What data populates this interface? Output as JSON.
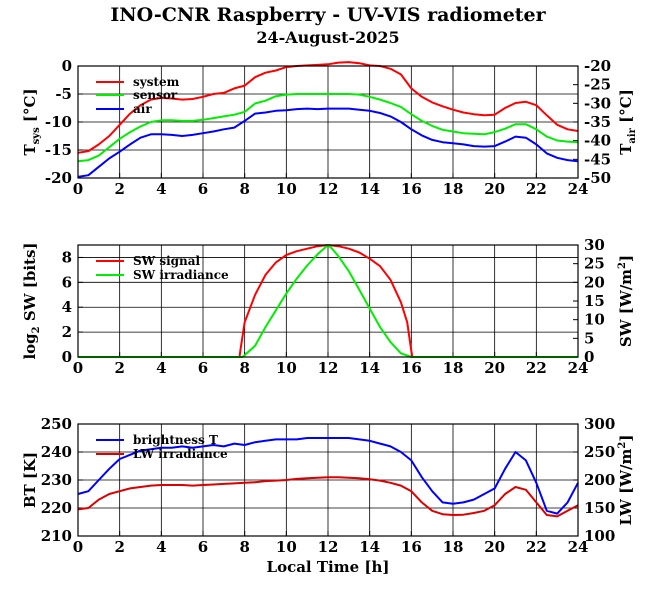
{
  "title": "INO-CNR Raspberry - UV-VIS radiometer",
  "subtitle": "24-August-2025",
  "xlabel": "Local Time [h]",
  "chart_data": [
    {
      "type": "line",
      "x_range": [
        0,
        24
      ],
      "x_ticks": [
        "0",
        "2",
        "4",
        "6",
        "8",
        "10",
        "12",
        "14",
        "16",
        "18",
        "20",
        "22",
        "24"
      ],
      "ylabel_left": "T",
      "ylabel_left_sub": "sys",
      "ylabel_left_unit": " [°C]",
      "ylabel_right": "T",
      "ylabel_right_sub": "air",
      "ylabel_right_unit": " [°C]",
      "ylim_left": [
        -20,
        0
      ],
      "ylim_right": [
        -50,
        -20
      ],
      "y_ticks_left": [
        "0",
        "-5",
        "-10",
        "-15",
        "-20"
      ],
      "y_ticks_right": [
        "-20",
        "-25",
        "-30",
        "-35",
        "-40",
        "-45",
        "-50"
      ],
      "legend": [
        "system",
        "sensor",
        "air"
      ],
      "series": [
        {
          "name": "system",
          "color": "#ff0000",
          "axis": "left",
          "x": [
            0,
            0.5,
            1,
            1.5,
            2,
            2.5,
            3,
            3.5,
            4,
            4.5,
            5,
            5.5,
            6,
            6.5,
            7,
            7.5,
            8,
            8.5,
            9,
            9.5,
            10,
            10.5,
            11,
            11.5,
            12,
            12.5,
            13,
            13.5,
            14,
            14.5,
            15,
            15.5,
            16,
            16.5,
            17,
            17.5,
            18,
            18.5,
            19,
            19.5,
            20,
            20.5,
            21,
            21.5,
            22,
            22.5,
            23,
            23.5,
            24
          ],
          "values": [
            -15.5,
            -15.2,
            -14,
            -12.5,
            -10.5,
            -8.5,
            -7,
            -6,
            -5.7,
            -5.8,
            -6,
            -5.9,
            -5.5,
            -5,
            -4.8,
            -4,
            -3.5,
            -2,
            -1.2,
            -0.8,
            -0.2,
            0,
            0.1,
            0.2,
            0.3,
            0.6,
            0.7,
            0.5,
            0.1,
            0,
            -0.5,
            -1.5,
            -4,
            -5.5,
            -6.5,
            -7.2,
            -7.8,
            -8.3,
            -8.6,
            -8.8,
            -8.7,
            -7.5,
            -6.6,
            -6.4,
            -7,
            -8.8,
            -10.5,
            -11.3,
            -11.6
          ]
        },
        {
          "name": "sensor",
          "color": "#00ee00",
          "axis": "left",
          "x": [
            0,
            0.5,
            1,
            1.5,
            2,
            2.5,
            3,
            3.5,
            4,
            4.5,
            5,
            5.5,
            6,
            6.5,
            7,
            7.5,
            8,
            8.5,
            9,
            9.5,
            10,
            10.5,
            11,
            11.5,
            12,
            12.5,
            13,
            13.5,
            14,
            14.5,
            15,
            15.5,
            16,
            16.5,
            17,
            17.5,
            18,
            18.5,
            19,
            19.5,
            20,
            20.5,
            21,
            21.5,
            22,
            22.5,
            23,
            23.5,
            24
          ],
          "values": [
            -17,
            -16.8,
            -16,
            -14.5,
            -13,
            -11.8,
            -10.8,
            -10,
            -9.7,
            -9.7,
            -9.8,
            -9.8,
            -9.6,
            -9.3,
            -9,
            -8.7,
            -8.2,
            -6.7,
            -6.2,
            -5.4,
            -5.1,
            -5,
            -5,
            -5,
            -5,
            -5,
            -5,
            -5.1,
            -5.5,
            -6,
            -6.6,
            -7.3,
            -8.6,
            -9.8,
            -10.7,
            -11.4,
            -11.7,
            -12,
            -12.1,
            -12.2,
            -11.8,
            -11.2,
            -10.4,
            -10.4,
            -11.3,
            -12.6,
            -13.3,
            -13.5,
            -13.6
          ]
        },
        {
          "name": "air",
          "color": "#0000ff",
          "axis": "left",
          "x": [
            0,
            0.5,
            1,
            1.5,
            2,
            2.5,
            3,
            3.5,
            4,
            4.5,
            5,
            5.5,
            6,
            6.5,
            7,
            7.5,
            8,
            8.5,
            9,
            9.5,
            10,
            10.5,
            11,
            11.5,
            12,
            12.5,
            13,
            13.5,
            14,
            14.5,
            15,
            15.5,
            16,
            16.5,
            17,
            17.5,
            18,
            18.5,
            19,
            19.5,
            20,
            20.5,
            21,
            21.5,
            22,
            22.5,
            23,
            23.5,
            24
          ],
          "values": [
            -19.8,
            -19.5,
            -18,
            -16.5,
            -15.3,
            -14,
            -12.8,
            -12.2,
            -12.2,
            -12.3,
            -12.5,
            -12.3,
            -12,
            -11.7,
            -11.3,
            -11,
            -9.8,
            -8.5,
            -8.3,
            -8,
            -7.9,
            -7.7,
            -7.6,
            -7.7,
            -7.6,
            -7.6,
            -7.6,
            -7.8,
            -8,
            -8.4,
            -9,
            -10,
            -11.3,
            -12.4,
            -13.2,
            -13.6,
            -13.8,
            -14,
            -14.3,
            -14.4,
            -14.3,
            -13.5,
            -12.6,
            -12.8,
            -14,
            -15.6,
            -16.4,
            -16.8,
            -17
          ]
        }
      ]
    },
    {
      "type": "line",
      "x_range": [
        0,
        24
      ],
      "x_ticks": [
        "0",
        "2",
        "4",
        "6",
        "8",
        "10",
        "12",
        "14",
        "16",
        "18",
        "20",
        "22",
        "24"
      ],
      "ylabel_left": "log",
      "ylabel_left_sub": "2",
      "ylabel_left_unit": " SW [bits]",
      "ylabel_right": "SW [W/m",
      "ylabel_right_sup": "2",
      "ylabel_right_unit": "]",
      "ylim_left": [
        0,
        9
      ],
      "ylim_right": [
        0,
        30
      ],
      "y_ticks_left": [
        "0",
        "2",
        "4",
        "6",
        "8"
      ],
      "y_ticks_right": [
        "0",
        "5",
        "10",
        "15",
        "20",
        "25",
        "30"
      ],
      "legend": [
        "SW signal",
        "SW irradiance"
      ],
      "series": [
        {
          "name": "SW signal",
          "color": "#ff0000",
          "axis": "left",
          "x": [
            0,
            7.75,
            7.8,
            8,
            8.5,
            9,
            9.5,
            10,
            10.5,
            11,
            11.5,
            12,
            12.5,
            13,
            13.5,
            14,
            14.5,
            15,
            15.5,
            15.8,
            16,
            16.05,
            24
          ],
          "values": [
            0,
            0,
            0.6,
            2.8,
            5,
            6.6,
            7.6,
            8.2,
            8.5,
            8.7,
            8.9,
            9,
            8.9,
            8.7,
            8.4,
            7.9,
            7.3,
            6.2,
            4.4,
            2.8,
            0.5,
            0,
            0
          ]
        },
        {
          "name": "SW irradiance",
          "color": "#00ee00",
          "axis": "right",
          "x": [
            0,
            7.9,
            8.5,
            9,
            9.5,
            10,
            10.5,
            11,
            11.5,
            11.8,
            12,
            12.2,
            12.5,
            13,
            13.5,
            14,
            14.5,
            15,
            15.5,
            16,
            24
          ],
          "values": [
            0,
            0,
            3,
            8,
            12.5,
            17,
            21,
            24.5,
            27.5,
            29,
            30,
            29,
            27,
            23,
            18,
            13,
            8,
            4,
            1,
            0,
            0
          ]
        }
      ]
    },
    {
      "type": "line",
      "x_range": [
        0,
        24
      ],
      "x_ticks": [
        "0",
        "2",
        "4",
        "6",
        "8",
        "10",
        "12",
        "14",
        "16",
        "18",
        "20",
        "22",
        "24"
      ],
      "ylabel_left": "BT [K]",
      "ylabel_right": "LW [W/m",
      "ylabel_right_sup": "2",
      "ylabel_right_unit": "]",
      "ylim_left": [
        210,
        250
      ],
      "ylim_right": [
        100,
        300
      ],
      "y_ticks_left": [
        "250",
        "240",
        "230",
        "220",
        "210"
      ],
      "y_ticks_right": [
        "300",
        "250",
        "200",
        "150",
        "100"
      ],
      "legend": [
        "brightness T",
        "LW irradiance"
      ],
      "series": [
        {
          "name": "brightness T",
          "color": "#0000ff",
          "axis": "left",
          "x": [
            0,
            0.5,
            1,
            1.5,
            2,
            2.5,
            3,
            3.5,
            4,
            4.5,
            5,
            5.5,
            6,
            6.5,
            7,
            7.5,
            8,
            8.5,
            9,
            9.5,
            10,
            10.5,
            11,
            11.5,
            12,
            12.5,
            13,
            13.5,
            14,
            14.5,
            15,
            15.5,
            16,
            16.5,
            17,
            17.5,
            18,
            18.5,
            19,
            19.5,
            20,
            20.5,
            21,
            21.5,
            22,
            22.5,
            23,
            23.5,
            24
          ],
          "values": [
            225,
            226,
            230,
            234,
            237.5,
            239,
            240.5,
            241,
            241.5,
            241.5,
            242,
            241.5,
            242,
            242.5,
            242,
            243,
            242.5,
            243.5,
            244,
            244.5,
            244.5,
            244.5,
            245,
            245,
            245,
            245,
            245,
            244.5,
            244,
            243,
            242,
            240,
            237,
            231,
            226,
            222,
            221.5,
            222,
            223,
            225,
            227,
            234,
            240,
            237,
            229,
            219,
            218,
            222,
            229
          ]
        },
        {
          "name": "LW irradiance",
          "color": "#dd0000",
          "axis": "left",
          "x": [
            0,
            0.5,
            1,
            1.5,
            2,
            2.5,
            3,
            3.5,
            4,
            4.5,
            5,
            5.5,
            6,
            6.5,
            7,
            7.5,
            8,
            8.5,
            9,
            9.5,
            10,
            10.5,
            11,
            11.5,
            12,
            12.5,
            13,
            13.5,
            14,
            14.5,
            15,
            15.5,
            16,
            16.5,
            17,
            17.5,
            18,
            18.5,
            19,
            19.5,
            20,
            20.5,
            21,
            21.5,
            22,
            22.5,
            23,
            23.5,
            24
          ],
          "values": [
            219.5,
            220,
            223,
            225,
            226,
            227,
            227.5,
            228,
            228.2,
            228.2,
            228.2,
            228,
            228.2,
            228.4,
            228.6,
            228.8,
            229,
            229.2,
            229.6,
            229.8,
            230,
            230.4,
            230.6,
            230.8,
            231,
            231,
            230.8,
            230.6,
            230.3,
            229.8,
            229,
            228,
            226,
            222,
            219,
            217.8,
            217.5,
            217.6,
            218.2,
            219,
            221,
            225,
            227.5,
            226.5,
            222,
            217.5,
            217,
            219,
            221
          ]
        }
      ]
    }
  ]
}
